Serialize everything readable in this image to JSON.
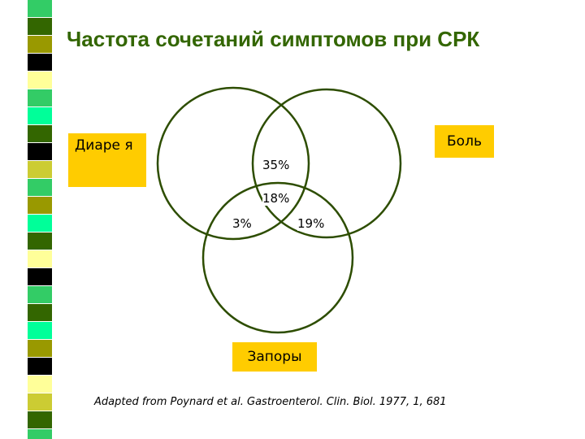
{
  "title": "Частота сочетаний симптомов при СРК",
  "circles": {
    "diarrhea": {
      "label": "Диаре я"
    },
    "pain": {
      "label": "Боль"
    },
    "constipation": {
      "label": "Запоры"
    }
  },
  "overlaps": {
    "diarrhea_pain": "35%",
    "all_three": "18%",
    "diarrhea_constipation": "3%",
    "pain_constipation": "19%"
  },
  "source": "Adapted from Poynard et al. Gastroenterol. Clin. Biol. 1977, 1, 681",
  "colors": {
    "title": "#336600",
    "circle_stroke": "#2d4d00",
    "label_background": "#ffcc00",
    "stripes": [
      "#33cc66",
      "#336600",
      "#999900",
      "#000000",
      "#ffff99",
      "#00ff99",
      "#cccc33"
    ]
  }
}
